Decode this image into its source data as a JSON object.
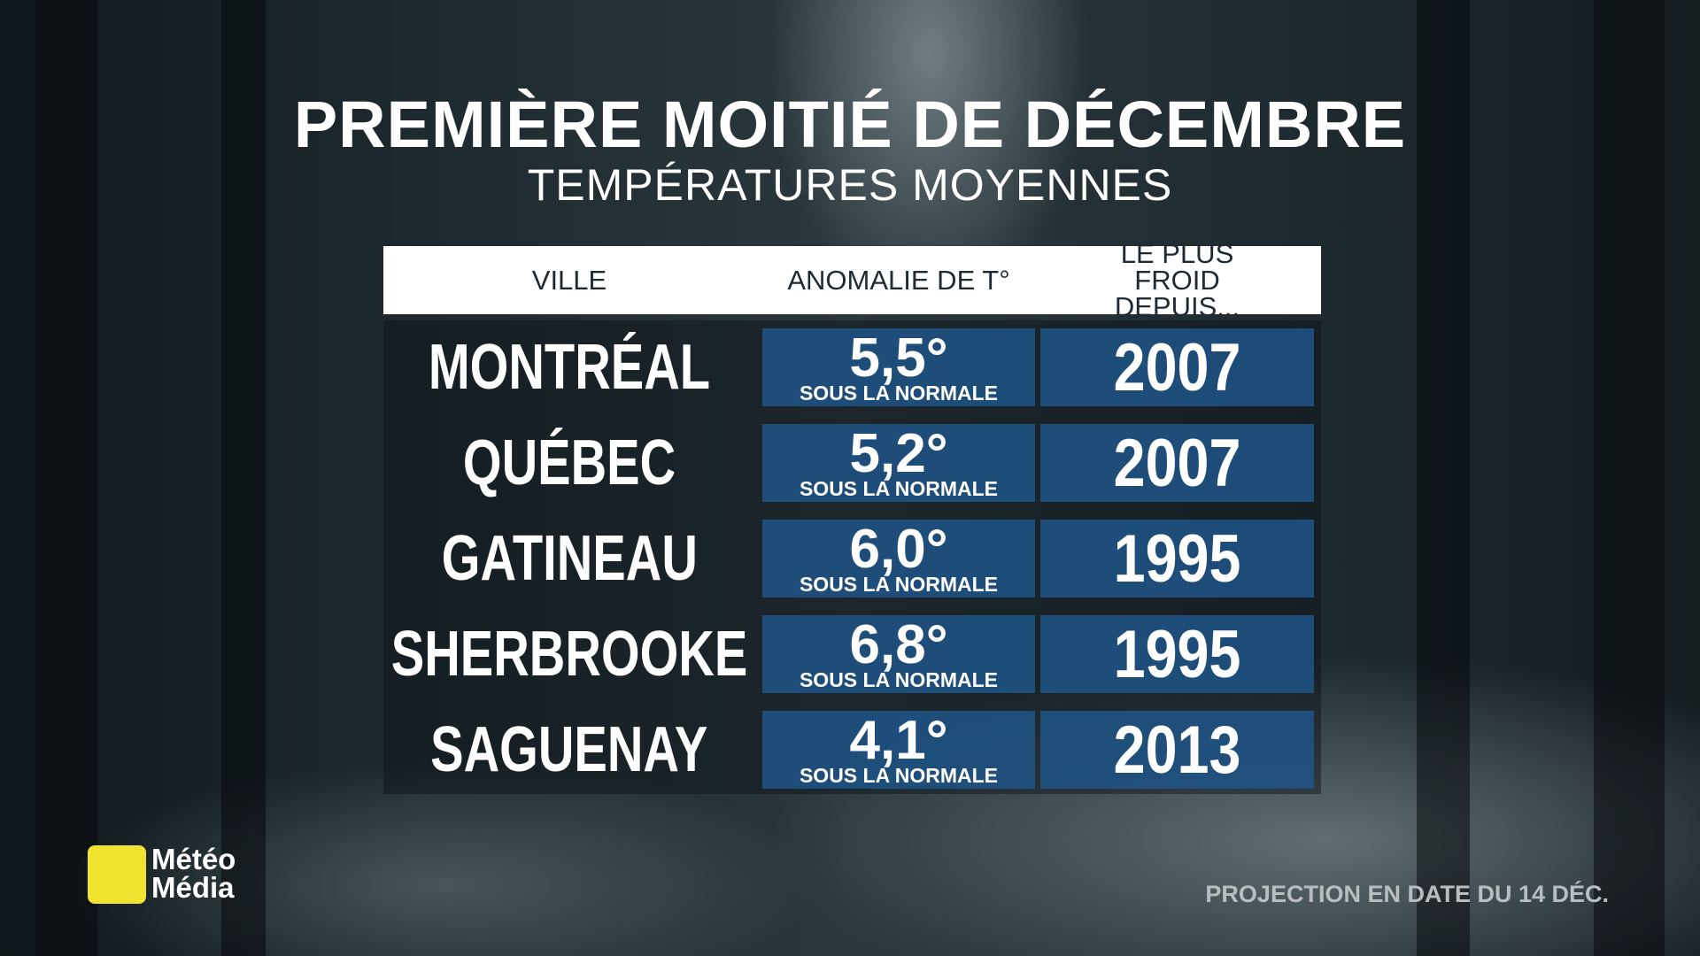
{
  "title": "PREMIÈRE MOITIÉ DE DÉCEMBRE",
  "subtitle": "TEMPÉRATURES MOYENNES",
  "table": {
    "headers": [
      "VILLE",
      "ANOMALIE DE T°",
      "LE PLUS FROID DEPUIS..."
    ],
    "rows": [
      [
        "MONTRÉAL",
        "5,5°",
        "SOUS LA NORMALE",
        2007
      ],
      [
        "QUÉBEC",
        "5,2°",
        "SOUS LA NORMALE",
        2007
      ],
      [
        "GATINEAU",
        "6,0°",
        "SOUS LA NORMALE",
        1995
      ],
      [
        "SHERBROOKE",
        "6,8°",
        "SOUS LA NORMALE",
        1995
      ],
      [
        "SAGUENAY",
        "4,1°",
        "SOUS LA NORMALE",
        2013
      ]
    ]
  },
  "logo": [
    "Météo",
    "Média"
  ],
  "footer": "PROJECTION EN DATE DU 14 DÉC."
}
